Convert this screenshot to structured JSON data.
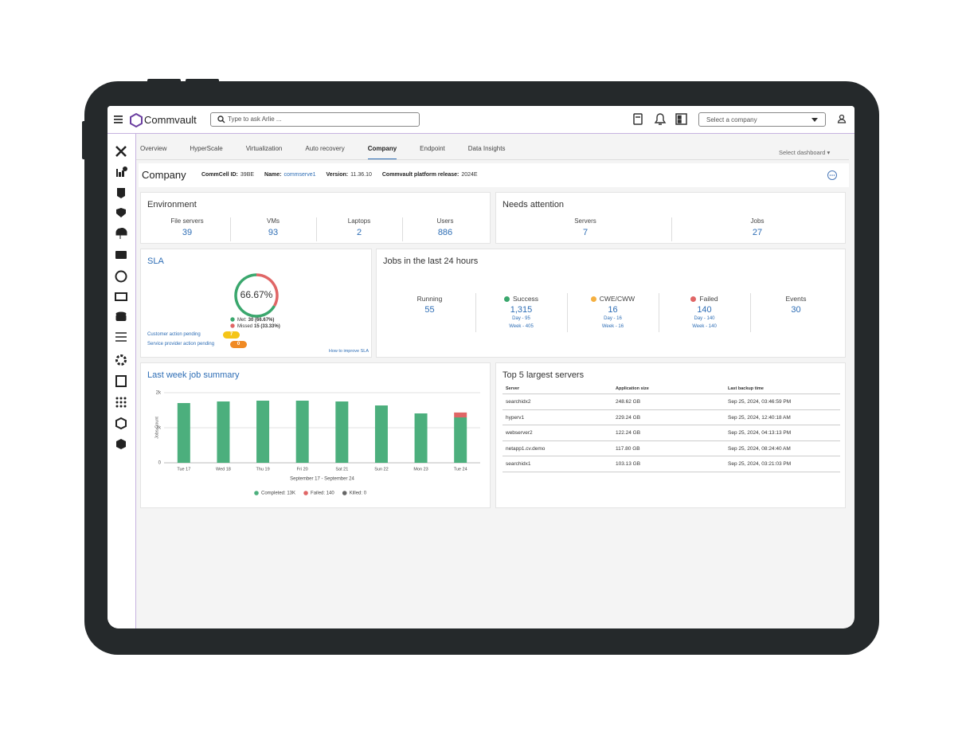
{
  "header": {
    "brand": "Commvault",
    "search_placeholder": "Type to ask Arlie ...",
    "company_select": "Select a company"
  },
  "tabs": {
    "items": [
      "Overview",
      "HyperScale",
      "Virtualization",
      "Auto recovery",
      "Company",
      "Endpoint",
      "Data Insights"
    ],
    "active": 4,
    "dashboard_select": "Select dashboard"
  },
  "page_header": {
    "title": "Company",
    "fields": [
      {
        "label": "CommCell ID:",
        "value": "39BE"
      },
      {
        "label": "Name:",
        "value": "commserve1"
      },
      {
        "label": "Version:",
        "value": "11.36.10"
      },
      {
        "label": "Commvault platform release:",
        "value": "2024E"
      }
    ]
  },
  "environment": {
    "title": "Environment",
    "items": [
      {
        "label": "File servers",
        "value": 39
      },
      {
        "label": "VMs",
        "value": 93
      },
      {
        "label": "Laptops",
        "value": 2
      },
      {
        "label": "Users",
        "value": 886
      }
    ]
  },
  "needs_attention": {
    "title": "Needs attention",
    "items": [
      {
        "label": "Servers",
        "value": 7
      },
      {
        "label": "Jobs",
        "value": 27
      }
    ]
  },
  "sla": {
    "title": "SLA",
    "percent": "66.67%",
    "legend": [
      {
        "label": "Met:",
        "value": "30 (66.67%)",
        "count": 30,
        "color": "#3aa76d"
      },
      {
        "label": "Missed",
        "value": "15 (33.33%)",
        "count": 15,
        "color": "#e06666"
      }
    ],
    "pending": [
      {
        "label": "Customer action pending",
        "value": 7,
        "color": "#f5c518"
      },
      {
        "label": "Service provider action pending",
        "value": 0,
        "color": "#f08a24"
      }
    ],
    "link": "How to improve SLA"
  },
  "jobs": {
    "title": "Jobs in the last 24 hours",
    "items": [
      {
        "label": "Running",
        "value": 55
      },
      {
        "label": "Success",
        "value": "1,315",
        "color": "#3aa76d",
        "day": "Day - 95",
        "week": "Week - 405"
      },
      {
        "label": "CWE/CWW",
        "value": 16,
        "color": "#f5b041",
        "day": "Day - 16",
        "week": "Week - 16"
      },
      {
        "label": "Failed",
        "value": 140,
        "color": "#e06666",
        "day": "Day - 140",
        "week": "Week - 140"
      },
      {
        "label": "Events",
        "value": 30
      }
    ]
  },
  "chart_data": {
    "type": "bar",
    "title": "Last week job summary",
    "categories": [
      "Tue 17",
      "Wed 18",
      "Thu 19",
      "Fri 20",
      "Sat 21",
      "Sun 22",
      "Mon 23",
      "Tue 24"
    ],
    "series": [
      {
        "name": "Completed: 13K",
        "color": "#4caf7d",
        "values": [
          1705,
          1750,
          1773,
          1773,
          1750,
          1636,
          1409,
          1295
        ]
      },
      {
        "name": "Failed: 140",
        "color": "#e06666",
        "values": [
          0,
          0,
          0,
          0,
          0,
          0,
          0,
          140
        ]
      },
      {
        "name": "Killed: 0",
        "color": "#666666",
        "values": [
          0,
          0,
          0,
          0,
          0,
          0,
          0,
          0
        ]
      }
    ],
    "stacked": true,
    "ylim": [
      0,
      2000
    ],
    "yticks": [
      0,
      {
        "value": 1000,
        "label": "1k"
      },
      {
        "value": 2000,
        "label": "2k"
      }
    ],
    "grid": true,
    "x_label": "September 17 - September 24",
    "y_label": "Jobs Count"
  },
  "top_servers": {
    "title": "Top 5 largest servers",
    "columns": [
      "Server",
      "Application size",
      "Last backup time"
    ],
    "rows": [
      [
        "searchidx2",
        "248.62 GB",
        "Sep 25, 2024, 03:46:59 PM"
      ],
      [
        "hyperv1",
        "229.24 GB",
        "Sep 25, 2024, 12:40:18 AM"
      ],
      [
        "webserver2",
        "122.24 GB",
        "Sep 25, 2024, 04:13:13 PM"
      ],
      [
        "netapp1.cv.demo",
        "117.80 GB",
        "Sep 25, 2024, 08:24:40 AM"
      ],
      [
        "searchidx1",
        "103.13 GB",
        "Sep 25, 2024, 03:21:03 PM"
      ]
    ]
  }
}
